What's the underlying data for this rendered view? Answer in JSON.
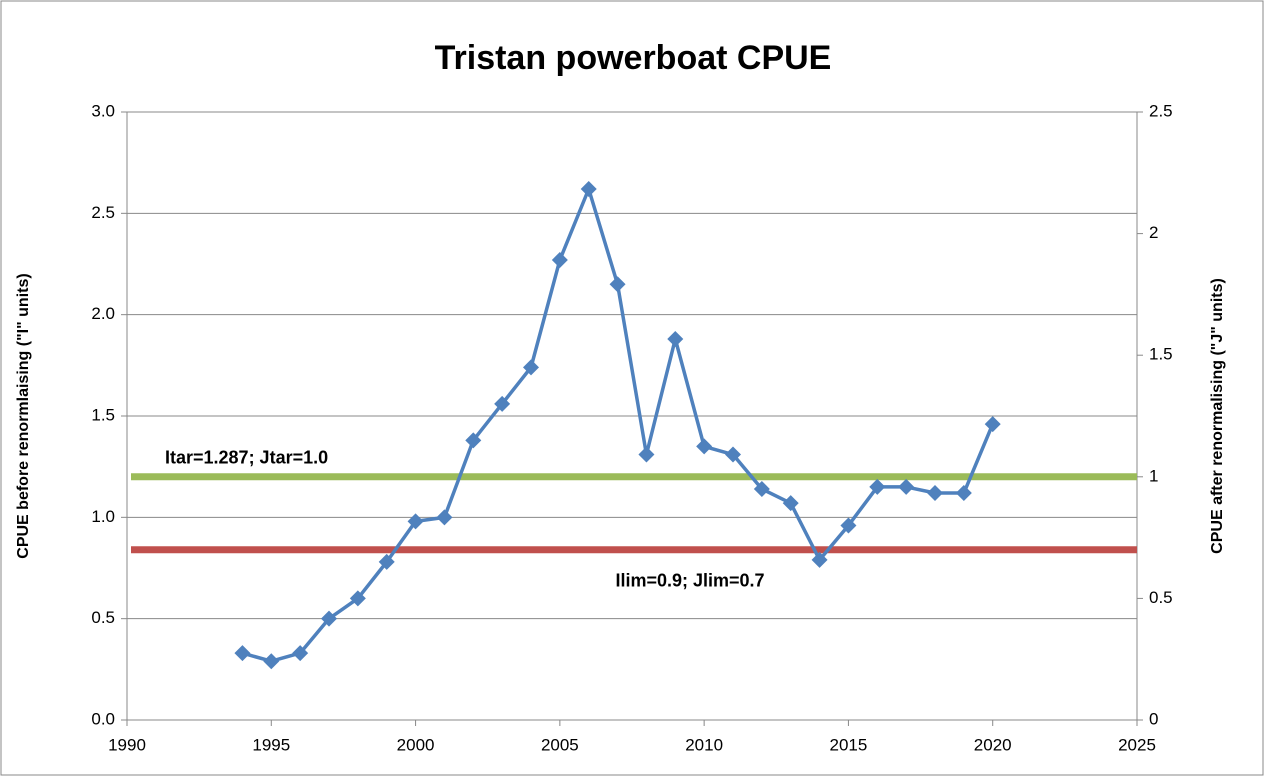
{
  "chart_data": {
    "type": "line",
    "title": "Tristan powerboat CPUE",
    "y_label": "CPUE before renormlaising (\"I\" units)",
    "y2_label": "CPUE after renormalising (\"J\" units)",
    "x": [
      1994,
      1995,
      1996,
      1997,
      1998,
      1999,
      2000,
      2001,
      2002,
      2003,
      2004,
      2005,
      2006,
      2007,
      2008,
      2009,
      2010,
      2011,
      2012,
      2013,
      2014,
      2015,
      2016,
      2017,
      2018,
      2019,
      2020
    ],
    "series": [
      {
        "name": "CPUE",
        "color": "#4f81bd",
        "values": [
          0.33,
          0.29,
          0.33,
          0.5,
          0.6,
          0.78,
          0.98,
          1.0,
          1.38,
          1.56,
          1.74,
          2.27,
          2.62,
          2.15,
          1.31,
          1.88,
          1.35,
          1.31,
          1.14,
          1.07,
          0.79,
          0.96,
          1.15,
          1.15,
          1.12,
          1.12,
          1.46
        ]
      }
    ],
    "reference_lines": [
      {
        "label": "Itar=1.287; Jtar=1.0",
        "value": 1.0,
        "axis": "y2",
        "color": "#9bbb59"
      },
      {
        "label": "Ilim=0.9; Jlim=0.7",
        "value": 0.7,
        "axis": "y2",
        "color": "#c0504d"
      }
    ],
    "xlim": [
      1990,
      2025
    ],
    "xticks": [
      1990,
      1995,
      2000,
      2005,
      2010,
      2015,
      2020,
      2025
    ],
    "ylim": [
      0,
      3
    ],
    "yticks": [
      {
        "value": 0,
        "label": "0.0"
      },
      0.5,
      {
        "value": 1,
        "label": "1.0"
      },
      1.5,
      {
        "value": 2,
        "label": "2.0"
      },
      2.5,
      {
        "value": 3,
        "label": "3.0"
      }
    ],
    "y2lim": [
      0,
      2.5
    ],
    "y2ticks": [
      0,
      0.5,
      1,
      1.5,
      2,
      2.5
    ],
    "grid": true
  }
}
